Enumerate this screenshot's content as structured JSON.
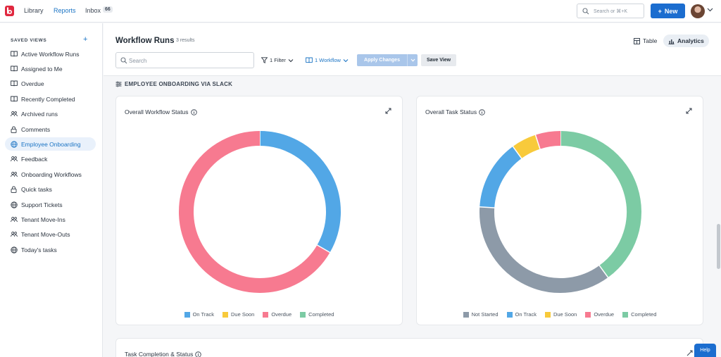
{
  "topbar": {
    "nav": [
      {
        "label": "Library",
        "active": false
      },
      {
        "label": "Reports",
        "active": true
      },
      {
        "label": "Inbox",
        "active": false
      }
    ],
    "inbox_count": "66",
    "search_placeholder": "Search or ⌘+K",
    "new_label": "New"
  },
  "sidebar": {
    "heading": "SAVED VIEWS",
    "items": [
      {
        "label": "Active Workflow Runs",
        "icon": "book-icon"
      },
      {
        "label": "Assigned to Me",
        "icon": "book-icon"
      },
      {
        "label": "Overdue",
        "icon": "book-icon"
      },
      {
        "label": "Recently Completed",
        "icon": "book-icon"
      },
      {
        "label": "Archived runs",
        "icon": "users-icon"
      },
      {
        "label": "Comments",
        "icon": "lock-icon"
      },
      {
        "label": "Employee Onboarding",
        "icon": "globe-icon",
        "selected": true
      },
      {
        "label": "Feedback",
        "icon": "users-icon"
      },
      {
        "label": "Onboarding Workflows",
        "icon": "users-icon"
      },
      {
        "label": "Quick tasks",
        "icon": "lock-icon"
      },
      {
        "label": "Support Tickets",
        "icon": "globe-icon"
      },
      {
        "label": "Tenant Move-Ins",
        "icon": "users-icon"
      },
      {
        "label": "Tenant Move-Outs",
        "icon": "users-icon"
      },
      {
        "label": "Today's tasks",
        "icon": "globe-icon"
      }
    ]
  },
  "header": {
    "title": "Workflow Runs",
    "results": "3 results",
    "table_label": "Table",
    "analytics_label": "Analytics",
    "search_placeholder": "Search",
    "filter_label": "1 Filter",
    "workflow_label": "1 Workflow",
    "apply_label": "Apply Changes",
    "save_label": "Save View"
  },
  "section": {
    "label": "EMPLOYEE ONBOARDING VIA SLACK"
  },
  "cards": {
    "workflow_status_title": "Overall Workflow Status",
    "task_status_title": "Overall Task Status",
    "bottom_title": "Task Completion & Status"
  },
  "colors": {
    "not_started": "#8d9aa8",
    "on_track": "#52a7e6",
    "due_soon": "#f8ca3b",
    "overdue": "#f77a90",
    "completed": "#7ccba4"
  },
  "chart_data": [
    {
      "type": "pie",
      "title": "Overall Workflow Status",
      "legend": [
        "On Track",
        "Due Soon",
        "Overdue",
        "Completed"
      ],
      "slices": [
        {
          "label": "On Track",
          "value": 1,
          "color": "#52a7e6"
        },
        {
          "label": "Overdue",
          "value": 2,
          "color": "#f77a90"
        }
      ],
      "legend_placement": "bottom"
    },
    {
      "type": "pie",
      "title": "Overall Task Status",
      "legend": [
        "Not Started",
        "On Track",
        "Due Soon",
        "Overdue",
        "Completed"
      ],
      "slices": [
        {
          "label": "Completed",
          "value": 40,
          "color": "#7ccba4"
        },
        {
          "label": "Not Started",
          "value": 36,
          "color": "#8d9aa8"
        },
        {
          "label": "On Track",
          "value": 14,
          "color": "#52a7e6"
        },
        {
          "label": "Due Soon",
          "value": 5,
          "color": "#f8ca3b"
        },
        {
          "label": "Overdue",
          "value": 5,
          "color": "#f77a90"
        }
      ],
      "legend_placement": "bottom"
    }
  ],
  "help_label": "Help"
}
